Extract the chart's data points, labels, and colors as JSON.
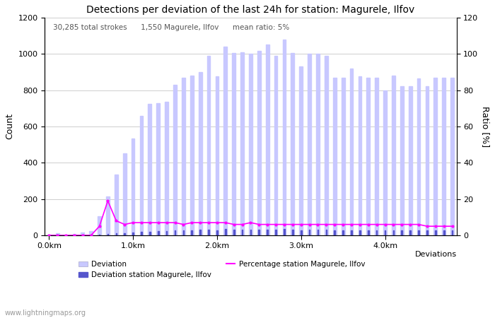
{
  "title": "Detections per deviation of the last 24h for station: Magurele, Ilfov",
  "subtitle": "30,285 total strokes      1,550 Magurele, Ilfov      mean ratio: 5%",
  "xlabel": "Deviations",
  "ylabel_left": "Count",
  "ylabel_right": "Ratio [%]",
  "watermark": "www.lightningmaps.org",
  "ylim_left": [
    0,
    1200
  ],
  "ylim_right": [
    0,
    120
  ],
  "yticks_left": [
    0,
    200,
    400,
    600,
    800,
    1000,
    1200
  ],
  "yticks_right": [
    0,
    20,
    40,
    60,
    80,
    100,
    120
  ],
  "xtick_labels": [
    "0.0km",
    "1.0km",
    "2.0km",
    "3.0km",
    "4.0km"
  ],
  "xtick_positions": [
    0,
    10,
    20,
    30,
    40
  ],
  "n_bars": 49,
  "bar_width": 0.4,
  "deviation_color": "#c8c8ff",
  "station_color": "#5555cc",
  "line_color": "#ff00ff",
  "deviation_values": [
    5,
    10,
    5,
    8,
    15,
    22,
    105,
    215,
    335,
    450,
    535,
    660,
    725,
    730,
    735,
    830,
    870,
    880,
    900,
    990,
    875,
    1040,
    1005,
    1010,
    1000,
    1015,
    1050,
    990,
    1080,
    1005,
    930,
    1000,
    1000,
    990,
    870,
    870,
    920,
    875,
    870,
    870,
    800,
    880,
    820,
    820,
    865,
    820,
    870,
    870,
    870
  ],
  "station_values": [
    1,
    2,
    1,
    1,
    2,
    3,
    5,
    8,
    10,
    12,
    15,
    18,
    20,
    22,
    24,
    26,
    28,
    28,
    30,
    32,
    28,
    35,
    32,
    32,
    30,
    32,
    32,
    30,
    35,
    32,
    28,
    32,
    30,
    30,
    28,
    28,
    28,
    28,
    28,
    28,
    26,
    28,
    26,
    26,
    28,
    26,
    28,
    28,
    28
  ],
  "percentage_values": [
    0,
    0,
    0,
    0,
    0,
    0,
    5,
    19,
    8,
    6,
    7,
    7,
    7,
    7,
    7,
    7,
    6,
    7,
    7,
    7,
    7,
    7,
    6,
    6,
    7,
    6,
    6,
    6,
    6,
    6,
    6,
    6,
    6,
    6,
    6,
    6,
    6,
    6,
    6,
    6,
    6,
    6,
    6,
    6,
    6,
    5,
    5,
    5,
    5
  ]
}
